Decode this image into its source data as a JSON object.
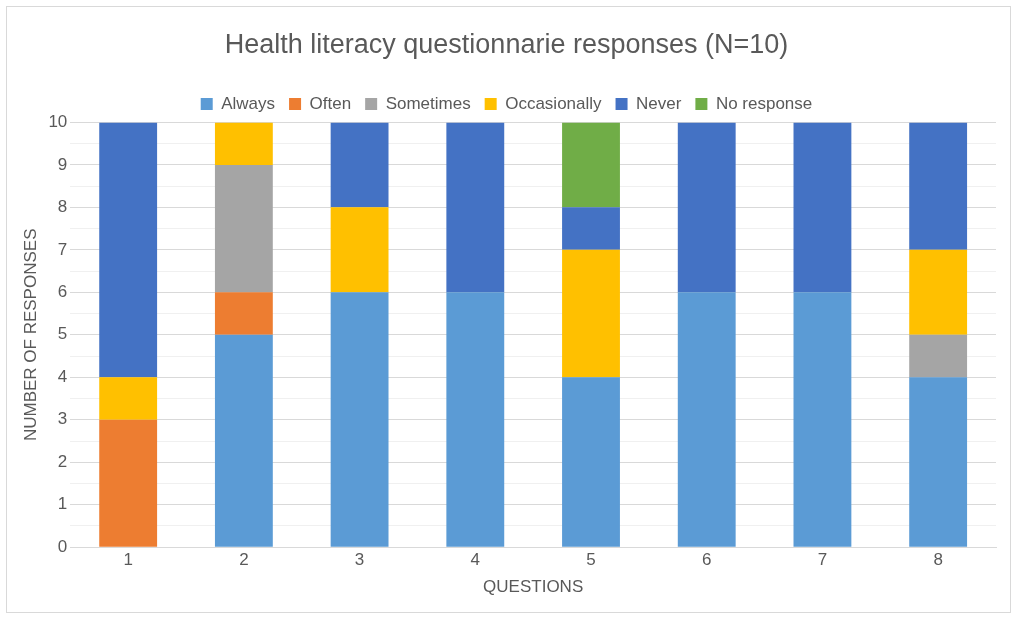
{
  "chart_data": {
    "type": "bar",
    "title": "Health literacy questionnarie responses (N=10)",
    "xlabel": "QUESTIONS",
    "ylabel": "NUMBER OF RESPONSES",
    "categories": [
      "1",
      "2",
      "3",
      "4",
      "5",
      "6",
      "7",
      "8"
    ],
    "stacked": true,
    "legend": "top",
    "grid": "y",
    "ylim": [
      0,
      10
    ],
    "yticks": [
      0,
      {
        "value": 0.5,
        "label": null
      },
      1,
      {
        "value": 1.5,
        "label": null
      },
      2,
      {
        "value": 2.5,
        "label": null
      },
      3,
      {
        "value": 3.5,
        "label": null
      },
      4,
      {
        "value": 4.5,
        "label": null
      },
      5,
      {
        "value": 5.5,
        "label": null
      },
      6,
      {
        "value": 6.5,
        "label": null
      },
      7,
      {
        "value": 7.5,
        "label": null
      },
      8,
      {
        "value": 8.5,
        "label": null
      },
      9,
      {
        "value": 9.5,
        "label": null
      },
      10
    ],
    "series": [
      {
        "name": "Always",
        "color": "#5b9bd5",
        "values": [
          0,
          5,
          6,
          6,
          4,
          6,
          6,
          4
        ]
      },
      {
        "name": "Often",
        "color": "#ed7d31",
        "values": [
          3,
          1,
          0,
          0,
          0,
          0,
          0,
          0
        ]
      },
      {
        "name": "Sometimes",
        "color": "#a5a5a5",
        "values": [
          0,
          3,
          0,
          0,
          0,
          0,
          0,
          1
        ]
      },
      {
        "name": "Occasionally",
        "color": "#ffc000",
        "values": [
          1,
          1,
          2,
          0,
          3,
          0,
          0,
          2
        ]
      },
      {
        "name": "Never",
        "color": "#4472c4",
        "values": [
          6,
          0,
          2,
          4,
          1,
          4,
          4,
          3
        ]
      },
      {
        "name": "No response",
        "color": "#70ad47",
        "values": [
          0,
          0,
          0,
          0,
          2,
          0,
          0,
          0
        ]
      }
    ]
  }
}
